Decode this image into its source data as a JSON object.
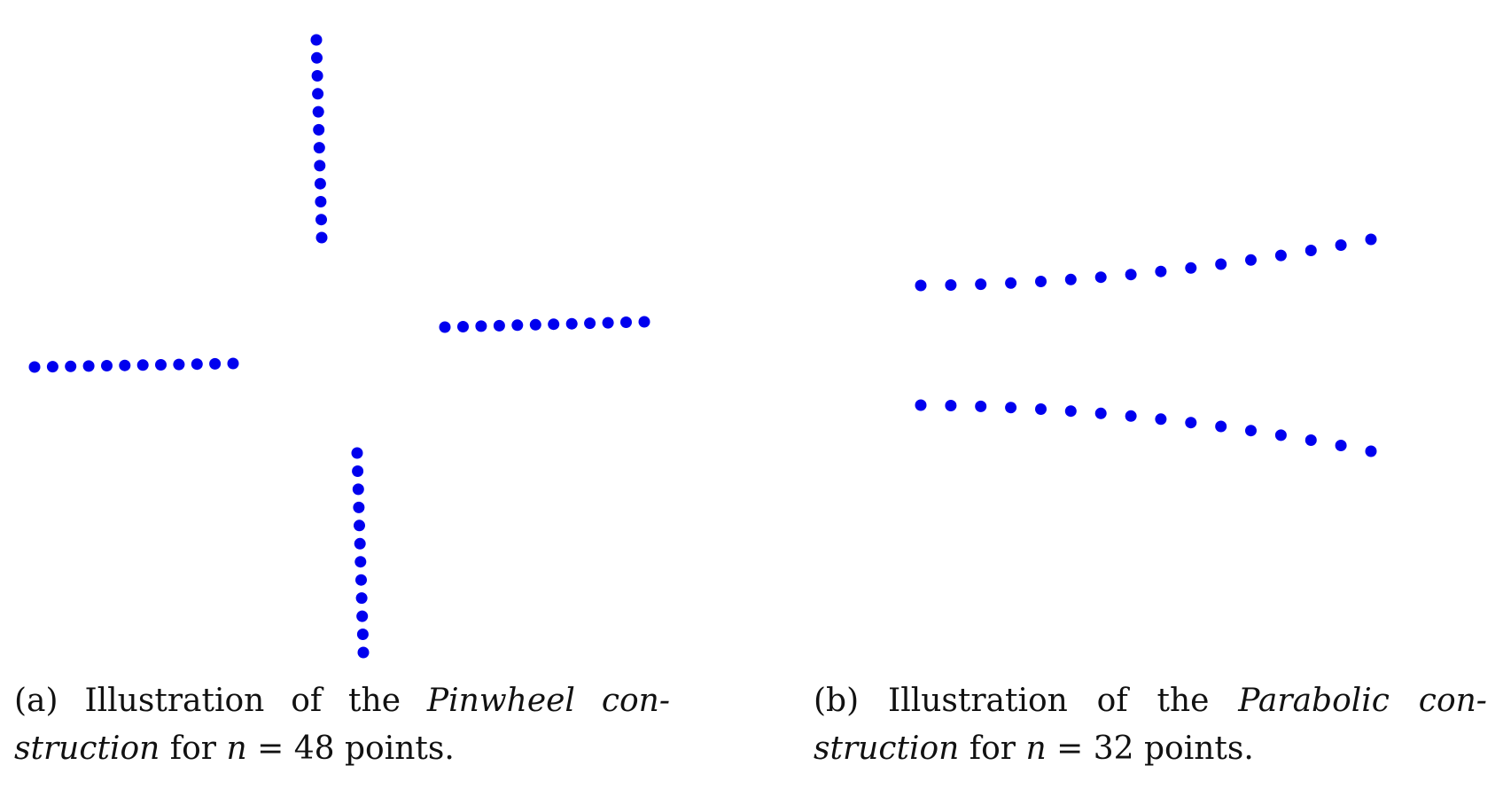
{
  "figure": {
    "dot_color": "#0000ee",
    "subfigures": [
      {
        "id": "a",
        "caption": {
          "label": "(a)",
          "pre": "Illustration of the",
          "italic_name": "Pinwheel",
          "line1_tail": "con-",
          "line2_italic": "struction",
          "line2_mid": "for",
          "math_var": "n",
          "math_eq": "= 48",
          "line2_end": "points."
        },
        "n": 48
      },
      {
        "id": "b",
        "caption": {
          "label": "(b)",
          "pre": "Illustration of the",
          "italic_name": "Parabolic",
          "line1_tail": "con-",
          "line2_italic": "struction",
          "line2_mid": "for",
          "math_var": "n",
          "math_eq": "= 32",
          "line2_end": "points."
        },
        "n": 32
      }
    ]
  }
}
